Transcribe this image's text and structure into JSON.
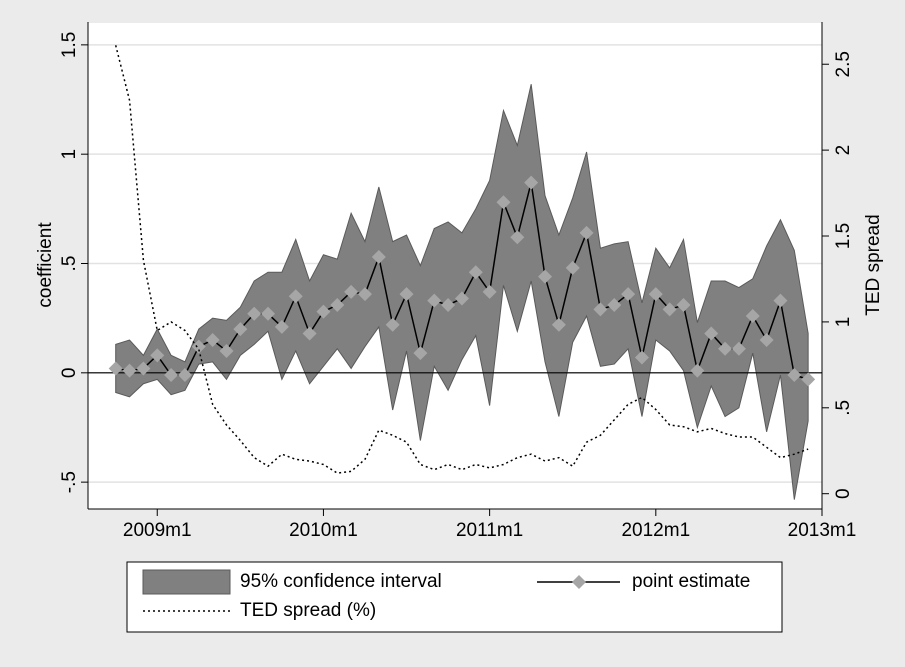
{
  "chart_data": {
    "type": "band-line",
    "ylabel": "coefficient",
    "y2label": "TED spread",
    "x": [
      "2008m10",
      "2008m11",
      "2008m12",
      "2009m1",
      "2009m2",
      "2009m3",
      "2009m4",
      "2009m5",
      "2009m6",
      "2009m7",
      "2009m8",
      "2009m9",
      "2009m10",
      "2009m11",
      "2009m12",
      "2010m1",
      "2010m2",
      "2010m3",
      "2010m4",
      "2010m5",
      "2010m6",
      "2010m7",
      "2010m8",
      "2010m9",
      "2010m10",
      "2010m11",
      "2010m12",
      "2011m1",
      "2011m2",
      "2011m3",
      "2011m4",
      "2011m5",
      "2011m6",
      "2011m7",
      "2011m8",
      "2011m9",
      "2011m10",
      "2011m11",
      "2011m12",
      "2012m1",
      "2012m2",
      "2012m3",
      "2012m4",
      "2012m5",
      "2012m6",
      "2012m7",
      "2012m8",
      "2012m9",
      "2012m10",
      "2012m11",
      "2012m12"
    ],
    "xlim": [
      "2008m8",
      "2013m1"
    ],
    "xticks": [
      "2009m1",
      "2010m1",
      "2011m1",
      "2012m1",
      "2013m1"
    ],
    "ylim": [
      -0.6,
      1.6
    ],
    "yticks": [
      {
        "value": -0.5,
        "label": "-.5"
      },
      0,
      {
        "value": 0.5,
        "label": ".5"
      },
      1,
      1.5
    ],
    "y2lim": [
      -0.06,
      2.74
    ],
    "y2ticks": [
      0,
      {
        "value": 0.5,
        "label": ".5"
      },
      1,
      1.5,
      2,
      2.5
    ],
    "grid": true,
    "legend": "bottom",
    "series": [
      {
        "name": "95% confidence interval",
        "type": "area",
        "color": "#808080",
        "upper": [
          0.13,
          0.15,
          0.08,
          0.2,
          0.08,
          0.05,
          0.2,
          0.25,
          0.24,
          0.3,
          0.42,
          0.46,
          0.46,
          0.61,
          0.42,
          0.54,
          0.52,
          0.73,
          0.6,
          0.85,
          0.6,
          0.63,
          0.49,
          0.66,
          0.69,
          0.64,
          0.75,
          0.88,
          1.2,
          1.04,
          1.32,
          0.81,
          0.63,
          0.8,
          1.01,
          0.57,
          0.59,
          0.6,
          0.32,
          0.57,
          0.48,
          0.61,
          0.23,
          0.42,
          0.42,
          0.39,
          0.43,
          0.58,
          0.7,
          0.56,
          0.18
        ],
        "lower": [
          -0.09,
          -0.11,
          -0.05,
          -0.03,
          -0.1,
          -0.08,
          0.04,
          0.05,
          -0.03,
          0.08,
          0.13,
          0.19,
          -0.03,
          0.1,
          -0.05,
          0.03,
          0.11,
          0.02,
          0.12,
          0.21,
          -0.17,
          0.1,
          -0.31,
          0.03,
          -0.08,
          0.06,
          0.17,
          -0.15,
          0.4,
          0.19,
          0.42,
          0.05,
          -0.2,
          0.14,
          0.26,
          0.03,
          0.04,
          0.11,
          -0.2,
          0.15,
          0.1,
          0.01,
          -0.25,
          -0.06,
          -0.2,
          -0.16,
          0.09,
          -0.27,
          -0.01,
          -0.58,
          -0.22
        ]
      },
      {
        "name": "point estimate",
        "type": "line",
        "color": "#000000",
        "marker_color": "#a6a6a6",
        "values": [
          0.02,
          0.01,
          0.02,
          0.08,
          -0.01,
          -0.01,
          0.12,
          0.15,
          0.1,
          0.2,
          0.27,
          0.27,
          0.21,
          0.35,
          0.18,
          0.28,
          0.31,
          0.37,
          0.36,
          0.53,
          0.22,
          0.36,
          0.09,
          0.33,
          0.31,
          0.34,
          0.46,
          0.37,
          0.78,
          0.62,
          0.87,
          0.44,
          0.22,
          0.48,
          0.64,
          0.29,
          0.31,
          0.36,
          0.07,
          0.36,
          0.29,
          0.31,
          0.01,
          0.18,
          0.11,
          0.11,
          0.26,
          0.15,
          0.33,
          -0.01,
          -0.03
        ]
      },
      {
        "name": "TED spread (%)",
        "type": "dotted",
        "color": "#000000",
        "axis": "y2",
        "values": [
          2.61,
          2.29,
          1.36,
          0.95,
          1.0,
          0.95,
          0.84,
          0.52,
          0.4,
          0.31,
          0.21,
          0.16,
          0.23,
          0.2,
          0.19,
          0.17,
          0.12,
          0.13,
          0.2,
          0.37,
          0.34,
          0.3,
          0.17,
          0.14,
          0.17,
          0.14,
          0.17,
          0.15,
          0.17,
          0.21,
          0.23,
          0.19,
          0.21,
          0.16,
          0.3,
          0.34,
          0.43,
          0.52,
          0.56,
          0.49,
          0.4,
          0.39,
          0.36,
          0.38,
          0.35,
          0.33,
          0.33,
          0.27,
          0.21,
          0.23,
          0.26
        ]
      }
    ]
  }
}
